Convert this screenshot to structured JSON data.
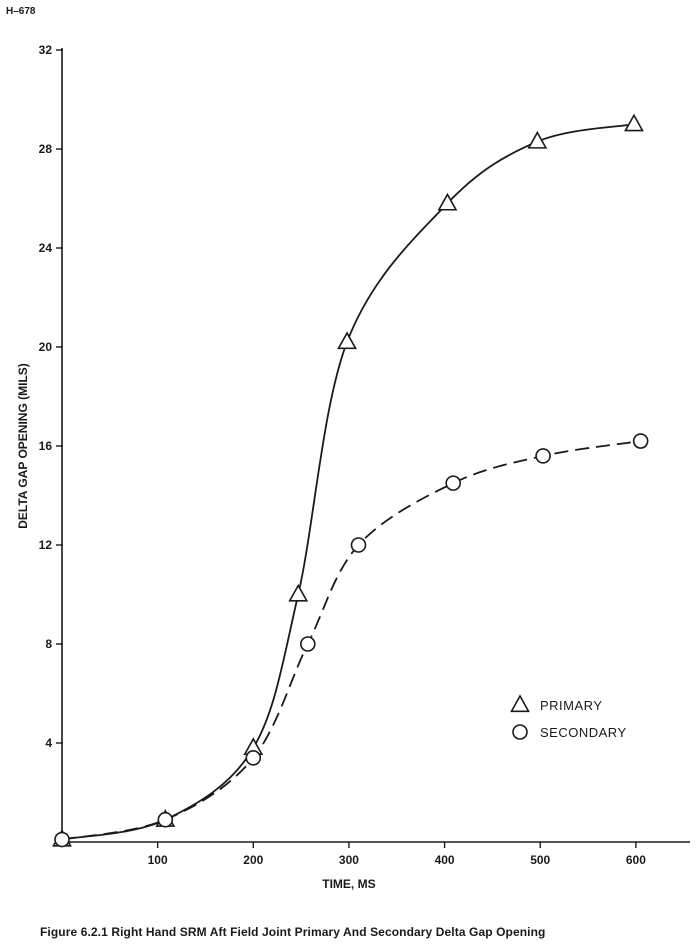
{
  "document": {
    "id_label": "H–678",
    "caption": "Figure 6.2.1 Right Hand SRM Aft Field Joint Primary And Secondary Delta Gap Opening"
  },
  "chart_data": {
    "type": "line",
    "title": "",
    "xlabel": "TIME, MS",
    "ylabel": "DELTA GAP OPENING (MILS)",
    "xlim": [
      0,
      620
    ],
    "ylim": [
      0,
      32
    ],
    "x_ticks": [
      100,
      200,
      300,
      400,
      500,
      600
    ],
    "x_tick_labels": [
      "100",
      "200",
      "300",
      "400",
      "500",
      "600"
    ],
    "y_ticks": [
      4,
      8,
      12,
      16,
      20,
      24,
      28,
      32
    ],
    "y_tick_labels": [
      "4",
      "8",
      "12",
      "16",
      "20",
      "24",
      "28",
      "32"
    ],
    "grid": false,
    "legend_position": "lower-right",
    "series": [
      {
        "name": "PRIMARY",
        "marker": "triangle",
        "line_style": "solid",
        "points": [
          {
            "x": 0,
            "y": 0.1
          },
          {
            "x": 108,
            "y": 0.9
          },
          {
            "x": 200,
            "y": 3.8
          },
          {
            "x": 247,
            "y": 10.0
          },
          {
            "x": 298,
            "y": 20.2
          },
          {
            "x": 403,
            "y": 25.8
          },
          {
            "x": 497,
            "y": 28.3
          },
          {
            "x": 598,
            "y": 29.0
          }
        ]
      },
      {
        "name": "SECONDARY",
        "marker": "circle",
        "line_style": "dashed",
        "points": [
          {
            "x": 0,
            "y": 0.1
          },
          {
            "x": 108,
            "y": 0.9
          },
          {
            "x": 200,
            "y": 3.4
          },
          {
            "x": 257,
            "y": 8.0
          },
          {
            "x": 310,
            "y": 12.0
          },
          {
            "x": 409,
            "y": 14.5
          },
          {
            "x": 503,
            "y": 15.6
          },
          {
            "x": 605,
            "y": 16.2
          }
        ]
      }
    ]
  }
}
